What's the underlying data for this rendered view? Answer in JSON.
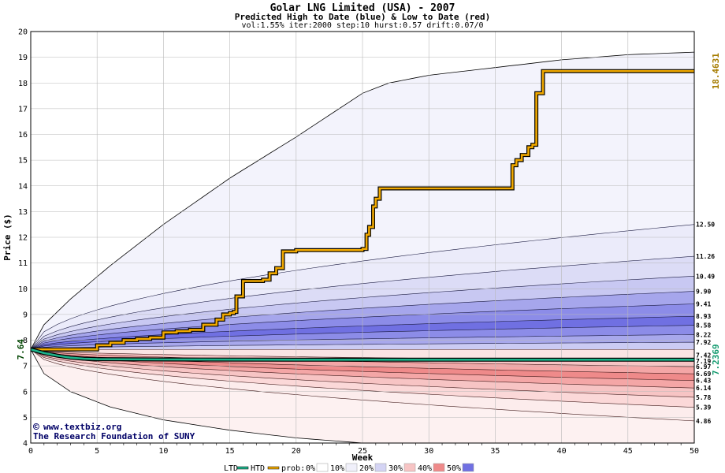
{
  "chart_data": {
    "type": "area",
    "title": "Golar LNG Limited (USA) - 2007",
    "subtitle": "Predicted High to Date (blue) &  Low to Date (red)",
    "params": "vol:1.55% iter:2000 step:10 hurst:0.57 drift:0.07/0",
    "xlabel": "Week",
    "ylabel": "Price ($)",
    "xlim": [
      0,
      50
    ],
    "ylim": [
      4,
      20
    ],
    "xticks": [
      0,
      5,
      10,
      15,
      20,
      25,
      30,
      35,
      40,
      45,
      50
    ],
    "yticks": [
      4,
      5,
      6,
      7,
      8,
      9,
      10,
      11,
      12,
      13,
      14,
      15,
      16,
      17,
      18,
      19,
      20
    ],
    "grid": true,
    "start_price": 7.64,
    "start_label": "7.64",
    "high_to_date_label": "18.4631",
    "low_to_date_label": "7.2369",
    "envelope": {
      "x": [
        0,
        1,
        3,
        6,
        10,
        15,
        20,
        25,
        27,
        30,
        35,
        40,
        45,
        50
      ],
      "upper": [
        7.64,
        8.6,
        9.6,
        10.9,
        12.5,
        14.3,
        15.9,
        17.6,
        18.0,
        18.3,
        18.6,
        18.9,
        19.1,
        19.2
      ],
      "lower": [
        7.64,
        6.7,
        6.0,
        5.4,
        4.9,
        4.5,
        4.2,
        4.0,
        4.0,
        4.0,
        4.0,
        4.0,
        4.0,
        4.0
      ]
    },
    "high_bands": [
      {
        "label": "12.50",
        "end": 12.5,
        "fill": "#ebebfa"
      },
      {
        "label": "11.26",
        "end": 11.26,
        "fill": "#dcdcf6"
      },
      {
        "label": "10.49",
        "end": 10.49,
        "fill": "#c8c8f2"
      },
      {
        "label": "9.90",
        "end": 9.9,
        "fill": "#a6a6ec"
      },
      {
        "label": "9.41",
        "end": 9.41,
        "fill": "#8c8ce8"
      },
      {
        "label": "8.93",
        "end": 8.93,
        "fill": "#7070e2"
      },
      {
        "label": "8.58",
        "end": 8.58,
        "fill": "#8c8ce8"
      },
      {
        "label": "8.22",
        "end": 8.22,
        "fill": "#a8a8ec"
      },
      {
        "label": "7.92",
        "end": 7.92,
        "fill": "#cbcbf3"
      },
      {
        "label": "7.42",
        "end": 7.42,
        "fill": "#ebebf8"
      }
    ],
    "low_bands": [
      {
        "label": "7.19",
        "end": 7.19,
        "fill": "#fae4e4"
      },
      {
        "label": "6.97",
        "end": 6.97,
        "fill": "#f7c4c4"
      },
      {
        "label": "6.69",
        "end": 6.69,
        "fill": "#f4a6a6"
      },
      {
        "label": "6.43",
        "end": 6.43,
        "fill": "#ef8a8a"
      },
      {
        "label": "6.14",
        "end": 6.14,
        "fill": "#f4a6a6"
      },
      {
        "label": "5.78",
        "end": 5.78,
        "fill": "#f7c4c4"
      },
      {
        "label": "5.39",
        "end": 5.39,
        "fill": "#fbd8d8"
      },
      {
        "label": "4.86",
        "end": 4.86,
        "fill": "#fcecec"
      }
    ],
    "htd_series": {
      "name": "HTD",
      "x": [
        0,
        2,
        4,
        5,
        6,
        7,
        8,
        9,
        10,
        11,
        12,
        13,
        14,
        14.5,
        15,
        15.3,
        15.5,
        16,
        17.5,
        18,
        18.5,
        19,
        20,
        22,
        24,
        25,
        25.3,
        25.5,
        25.8,
        26,
        26.3,
        27,
        30,
        33,
        36,
        36.3,
        36.6,
        37,
        37.5,
        37.8,
        38.1,
        38.6,
        40,
        45,
        50
      ],
      "y": [
        7.64,
        7.64,
        7.64,
        7.8,
        7.9,
        8.0,
        8.05,
        8.1,
        8.3,
        8.35,
        8.4,
        8.6,
        8.8,
        9.0,
        9.05,
        9.1,
        9.7,
        10.3,
        10.35,
        10.6,
        10.8,
        11.45,
        11.5,
        11.5,
        11.5,
        11.55,
        12.1,
        12.4,
        13.2,
        13.5,
        13.9,
        13.9,
        13.9,
        13.9,
        13.9,
        14.8,
        15.0,
        15.2,
        15.5,
        15.6,
        17.6,
        18.46,
        18.46,
        18.46,
        18.46
      ]
    },
    "ltd_series": {
      "name": "LTD",
      "x": [
        0,
        1,
        2,
        3,
        4,
        5,
        10,
        20,
        30,
        40,
        50
      ],
      "y": [
        7.64,
        7.5,
        7.4,
        7.32,
        7.28,
        7.26,
        7.25,
        7.24,
        7.24,
        7.24,
        7.24
      ]
    }
  },
  "legend": {
    "ltd": "LTD",
    "htd": "HTD",
    "prob_prefix": "prob:",
    "items": [
      {
        "label": "0%",
        "color": "#ffffff"
      },
      {
        "label": "10%",
        "color": "#f0f0fa"
      },
      {
        "label": "20%",
        "color": "#d4d4f4"
      },
      {
        "label": "30%",
        "color": "#f7c4c4"
      },
      {
        "label": "40%",
        "color": "#ef8a8a"
      },
      {
        "label": "50%",
        "color": "#7070e2"
      }
    ]
  },
  "watermark": {
    "line1": "www.textbiz.org",
    "line2": "The Research Foundation of SUNY",
    "copyright_symbol": "©"
  },
  "colors": {
    "htd": "#f0a800",
    "ltd": "#1db38a",
    "label_gold": "#a67c00",
    "label_green": "#129a6e",
    "watermark": "#000066"
  }
}
